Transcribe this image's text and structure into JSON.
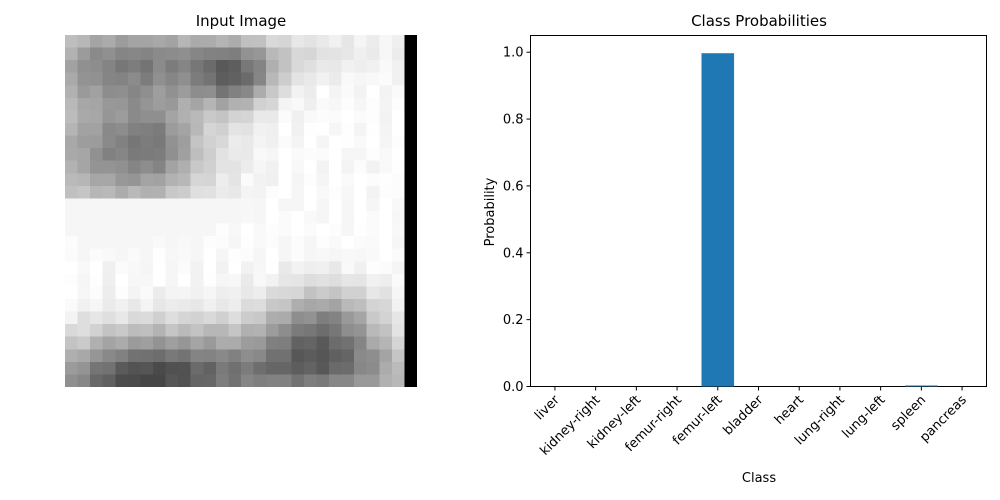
{
  "left_panel": {
    "title": "Input Image"
  },
  "chart_data": {
    "type": "bar",
    "title": "Class Probabilities",
    "xlabel": "Class",
    "ylabel": "Probability",
    "categories": [
      "liver",
      "kidney-right",
      "kidney-left",
      "femur-right",
      "femur-left",
      "bladder",
      "heart",
      "lung-right",
      "lung-left",
      "spleen",
      "pancreas"
    ],
    "values": [
      0.0,
      0.0,
      0.0,
      0.0,
      0.997,
      0.0,
      0.0,
      0.0,
      0.0,
      0.003,
      0.0
    ],
    "ylim": [
      0,
      1.05
    ],
    "yticks": [
      0.0,
      0.2,
      0.4,
      0.6,
      0.8,
      1.0
    ],
    "ytick_labels": [
      "0.0",
      "0.2",
      "0.4",
      "0.6",
      "0.8",
      "1.0"
    ],
    "bar_color": "#1f77b4",
    "grid": false,
    "legend": "none"
  }
}
